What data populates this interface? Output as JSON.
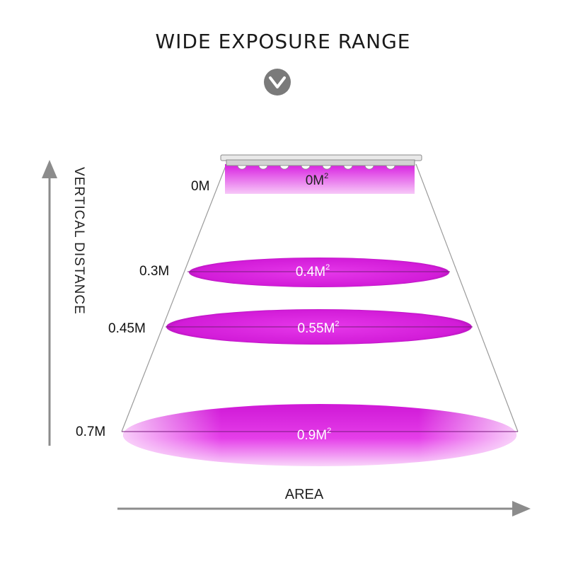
{
  "title": "WIDE EXPOSURE RANGE",
  "axes": {
    "vertical_label": "VERTICAL DISTANCE",
    "horizontal_label": "AREA"
  },
  "levels": [
    {
      "distance": "0M",
      "area": "0M",
      "area_exp": "2"
    },
    {
      "distance": "0.3M",
      "area": "0.4M",
      "area_exp": "2"
    },
    {
      "distance": "0.45M",
      "area": "0.55M",
      "area_exp": "2"
    },
    {
      "distance": "0.7M",
      "area": "0.9M",
      "area_exp": "2"
    }
  ],
  "colors": {
    "magenta": "#e11ee6",
    "magenta_light": "#f4a6f5",
    "axis_gray": "#8c8c8c",
    "badge_gray": "#7a7a7a"
  },
  "icons": {
    "badge": "chevron-down-circle-icon",
    "lamp": "grow-light-bar-icon"
  }
}
